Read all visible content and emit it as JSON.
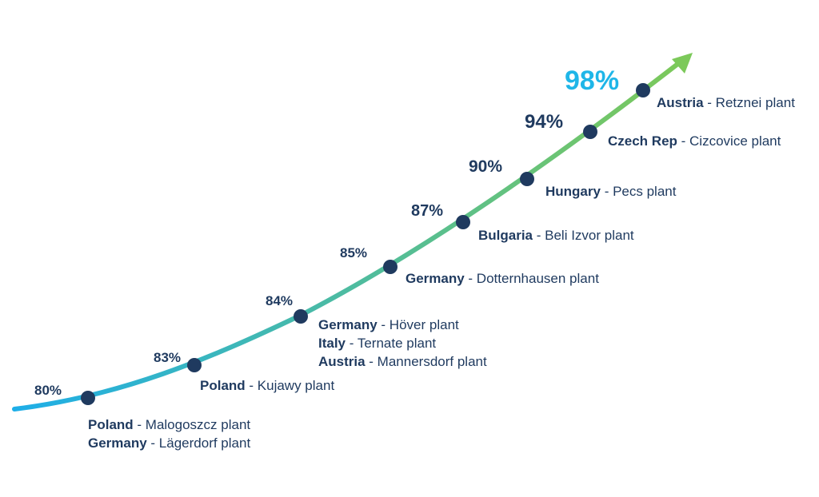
{
  "colors": {
    "curve_start": "#1eaee8",
    "curve_end": "#7cc95a",
    "dot": "#1f3a5f",
    "text": "#1f3a5f",
    "highlight": "#1fb6e8"
  },
  "chart_data": {
    "type": "line",
    "values": [
      80,
      83,
      84,
      85,
      87,
      90,
      94,
      98
    ],
    "value_labels": [
      "80%",
      "83%",
      "84%",
      "85%",
      "87%",
      "90%",
      "94%",
      "98%"
    ],
    "highlight_index": 7,
    "point_labels": [
      [
        {
          "country": "Poland",
          "rest": " - Malogoszcz plant"
        },
        {
          "country": "Germany",
          "rest": " - Lägerdorf plant"
        }
      ],
      [
        {
          "country": "Poland",
          "rest": " - Kujawy plant"
        }
      ],
      [
        {
          "country": "Germany",
          "rest": " - Höver plant"
        },
        {
          "country": "Italy",
          "rest": " - Ternate plant"
        },
        {
          "country": "Austria",
          "rest": " - Mannersdorf plant"
        }
      ],
      [
        {
          "country": "Germany",
          "rest": " - Dotternhausen plant"
        }
      ],
      [
        {
          "country": "Bulgaria",
          "rest": " - Beli Izvor plant"
        }
      ],
      [
        {
          "country": "Hungary",
          "rest": " - Pecs plant"
        }
      ],
      [
        {
          "country": "Czech Rep",
          "rest": " - Cizcovice plant"
        }
      ],
      [
        {
          "country": "Austria",
          "rest": " - Retznei plant"
        }
      ]
    ]
  }
}
